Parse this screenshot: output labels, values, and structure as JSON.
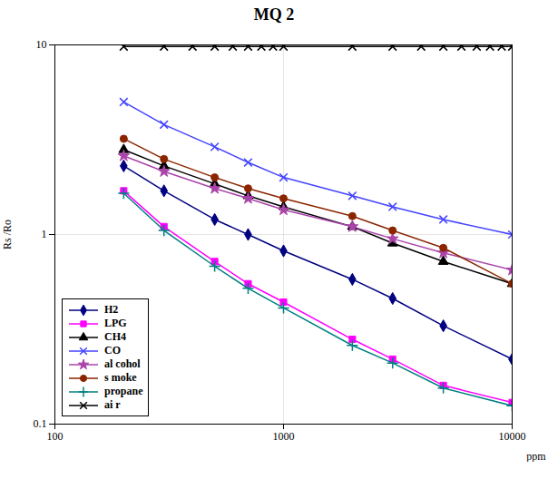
{
  "chart_data": {
    "type": "line",
    "title": "MQ 2",
    "xlabel": "ppm",
    "ylabel": "Rs /Ro",
    "log": true,
    "xlim": [
      100,
      10000
    ],
    "ylim": [
      0.1,
      10
    ],
    "xticks": [
      100,
      1000,
      10000
    ],
    "yticks": [
      0.1,
      1,
      10
    ],
    "grid": true,
    "legend": "lower left",
    "series": [
      {
        "name": "H2",
        "color": "#000080",
        "marker": "diamond",
        "line_style": "solid",
        "x": [
          200,
          300,
          500,
          700,
          1000,
          2000,
          3000,
          5000,
          10000
        ],
        "values": [
          2.3,
          1.7,
          1.2,
          1.0,
          0.82,
          0.58,
          0.46,
          0.33,
          0.22
        ]
      },
      {
        "name": "LPG",
        "color": "#FF00FF",
        "marker": "square",
        "line_style": "solid",
        "x": [
          200,
          300,
          500,
          700,
          1000,
          2000,
          3000,
          5000,
          10000
        ],
        "values": [
          1.7,
          1.1,
          0.72,
          0.55,
          0.44,
          0.28,
          0.22,
          0.16,
          0.13
        ]
      },
      {
        "name": "CH4",
        "color": "#000000",
        "marker": "triangle",
        "line_style": "solid",
        "x": [
          200,
          300,
          500,
          700,
          1000,
          2000,
          3000,
          5000,
          10000
        ],
        "values": [
          2.8,
          2.3,
          1.85,
          1.6,
          1.4,
          1.1,
          0.9,
          0.72,
          0.55
        ]
      },
      {
        "name": "CO",
        "color": "#4444FF",
        "marker": "x",
        "line_style": "solid",
        "x": [
          200,
          300,
          500,
          700,
          1000,
          2000,
          3000,
          5000,
          10000
        ],
        "values": [
          5.0,
          3.8,
          2.9,
          2.4,
          2.0,
          1.6,
          1.4,
          1.2,
          1.0
        ]
      },
      {
        "name": "al cohol",
        "color": "#AA44AA",
        "marker": "star",
        "line_style": "solid",
        "x": [
          200,
          300,
          500,
          700,
          1000,
          2000,
          3000,
          5000,
          10000
        ],
        "values": [
          2.6,
          2.15,
          1.75,
          1.55,
          1.35,
          1.1,
          0.95,
          0.8,
          0.65
        ]
      },
      {
        "name": "s moke",
        "color": "#8B2500",
        "marker": "circle",
        "line_style": "solid",
        "x": [
          200,
          300,
          500,
          700,
          1000,
          2000,
          3000,
          5000,
          10000
        ],
        "values": [
          3.2,
          2.5,
          2.0,
          1.75,
          1.55,
          1.25,
          1.05,
          0.85,
          0.55
        ]
      },
      {
        "name": "propane",
        "color": "#008080",
        "marker": "plus",
        "line_style": "solid",
        "x": [
          200,
          300,
          500,
          700,
          1000,
          2000,
          3000,
          5000,
          10000
        ],
        "values": [
          1.65,
          1.05,
          0.68,
          0.52,
          0.41,
          0.26,
          0.21,
          0.155,
          0.125
        ]
      },
      {
        "name": "ai r",
        "color": "#000000",
        "marker": "x",
        "line_style": "solid",
        "x": [
          200,
          300,
          400,
          500,
          600,
          700,
          800,
          900,
          1000,
          2000,
          3000,
          4000,
          5000,
          6000,
          7000,
          8000,
          9000,
          10000
        ],
        "values": [
          9.8,
          9.8,
          9.8,
          9.8,
          9.8,
          9.8,
          9.8,
          9.8,
          9.8,
          9.8,
          9.8,
          9.8,
          9.8,
          9.8,
          9.8,
          9.8,
          9.8,
          9.8
        ]
      }
    ]
  }
}
